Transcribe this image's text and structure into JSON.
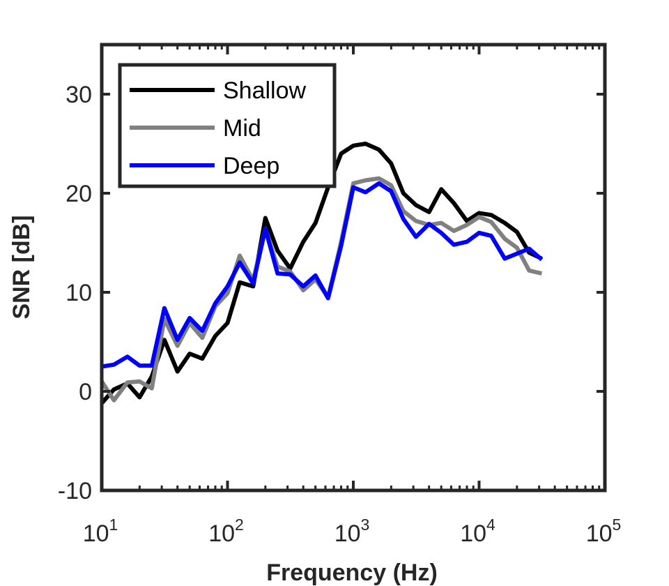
{
  "chart_data": {
    "type": "line",
    "xscale": "log",
    "xlim": [
      10,
      100000
    ],
    "ylim": [
      -10,
      35
    ],
    "xlabel": "Frequency (Hz)",
    "ylabel": "SNR [dB]",
    "grid": false,
    "legend_position": "top-left",
    "x_ticks": [
      {
        "base": "10",
        "exp": "1"
      },
      {
        "base": "10",
        "exp": "2"
      },
      {
        "base": "10",
        "exp": "3"
      },
      {
        "base": "10",
        "exp": "4"
      },
      {
        "base": "10",
        "exp": "5"
      }
    ],
    "y_ticks": [
      "30",
      "20",
      "10",
      "0",
      "-10"
    ],
    "x": [
      10,
      12.5,
      16,
      20,
      25,
      31.5,
      40,
      50,
      63,
      80,
      100,
      125,
      160,
      200,
      250,
      315,
      400,
      500,
      630,
      800,
      1000,
      1250,
      1600,
      2000,
      2500,
      3150,
      4000,
      5000,
      6300,
      8000,
      10000,
      12500,
      16000,
      20000,
      25000,
      31500
    ],
    "series": [
      {
        "name": "Shallow",
        "color": "#000000",
        "values": [
          -1.2,
          0.2,
          0.8,
          -0.6,
          1.5,
          5.2,
          2.0,
          3.8,
          3.3,
          5.6,
          6.9,
          11.0,
          10.6,
          17.5,
          14.2,
          12.4,
          15.1,
          17.0,
          20.6,
          24.0,
          24.8,
          25.0,
          24.4,
          23.0,
          20.0,
          18.8,
          18.1,
          20.4,
          19.0,
          17.2,
          18.0,
          17.8,
          17.0,
          16.1,
          14.0,
          13.4
        ]
      },
      {
        "name": "Mid",
        "color": "#808080",
        "values": [
          1.0,
          -0.9,
          0.9,
          1.0,
          0.3,
          7.3,
          4.6,
          6.9,
          5.4,
          8.6,
          9.9,
          13.7,
          11.2,
          16.4,
          12.6,
          12.1,
          10.2,
          11.3,
          9.5,
          15.1,
          21.0,
          21.3,
          21.5,
          20.8,
          18.2,
          17.2,
          16.8,
          17.0,
          16.2,
          16.8,
          17.6,
          17.1,
          15.4,
          14.5,
          12.2,
          11.9
        ]
      },
      {
        "name": "Deep",
        "color": "#0000ff",
        "values": [
          2.5,
          2.7,
          3.5,
          2.6,
          2.6,
          8.4,
          5.2,
          7.4,
          6.1,
          8.9,
          10.6,
          13.0,
          10.9,
          16.4,
          11.9,
          11.8,
          10.6,
          11.7,
          9.4,
          14.7,
          20.6,
          20.1,
          21.0,
          20.2,
          17.4,
          15.6,
          16.9,
          16.0,
          14.8,
          15.1,
          16.0,
          15.7,
          13.4,
          13.9,
          14.4,
          13.3
        ]
      }
    ]
  }
}
